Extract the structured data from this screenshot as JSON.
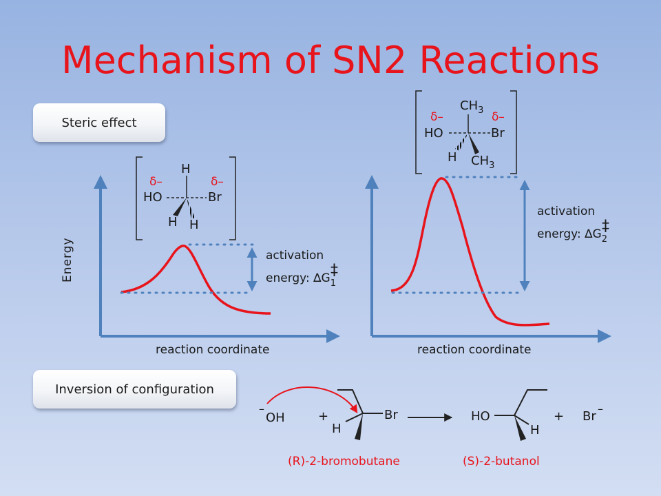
{
  "slide": {
    "title": "Mechanism of SN2 Reactions",
    "steric_button": "Steric effect",
    "inversion_button": "Inversion of configuration"
  },
  "left_plot": {
    "ylabel": "Energy",
    "xlabel": "reaction coordinate",
    "activation_line1": "activation",
    "activation_line2": "energy: ",
    "delta": "∆G",
    "subscript": "1",
    "dagger": "‡",
    "ts_structure": {
      "top": "H",
      "delta_left": "δ–",
      "delta_right": "δ–",
      "left_group": "HO",
      "right_group": "Br",
      "bottom_left": "H",
      "bottom_right": "H"
    }
  },
  "right_plot": {
    "xlabel": "reaction coordinate",
    "activation_line1": "activation",
    "activation_line2": "energy: ",
    "delta": "∆G",
    "subscript": "2",
    "dagger": "‡",
    "ts_structure": {
      "top": "CH",
      "top_sub": "3",
      "delta_left": "δ–",
      "delta_right": "δ–",
      "left_group": "HO",
      "right_group": "Br",
      "bottom_left": "H",
      "bottom_right": "CH",
      "bottom_right_sub": "3"
    }
  },
  "reaction": {
    "nucleophile_charge": "–",
    "nucleophile": "OH",
    "plus1": "+",
    "reactant_br": "Br",
    "reactant_h": "H",
    "product_ho": "HO",
    "product_h": "H",
    "plus2": "+",
    "bromide": "Br",
    "bromide_charge": "–",
    "reactant_name": "(R)-2-bromobutane",
    "product_name": "(S)-2-butanol"
  },
  "colors": {
    "title": "#e8141c",
    "curve": "#e8141c",
    "axis": "#4f81bd"
  }
}
